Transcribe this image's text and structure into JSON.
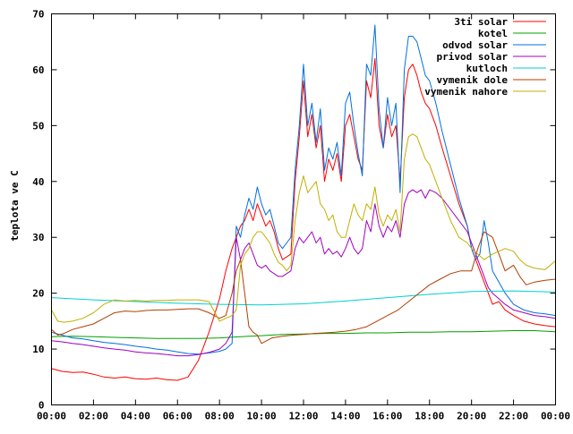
{
  "chart_data": {
    "type": "line",
    "title": "",
    "xlabel": "",
    "ylabel": "teplota ve C",
    "xlim": [
      0,
      24
    ],
    "ylim": [
      0,
      70
    ],
    "grid": false,
    "legend_position": "top-right",
    "x_ticks": [
      {
        "value": 0,
        "label": "00:00"
      },
      {
        "value": 2,
        "label": "02:00"
      },
      {
        "value": 4,
        "label": "04:00"
      },
      {
        "value": 6,
        "label": "06:00"
      },
      {
        "value": 8,
        "label": "08:00"
      },
      {
        "value": 10,
        "label": "10:00"
      },
      {
        "value": 12,
        "label": "12:00"
      },
      {
        "value": 14,
        "label": "14:00"
      },
      {
        "value": 16,
        "label": "16:00"
      },
      {
        "value": 18,
        "label": "18:00"
      },
      {
        "value": 20,
        "label": "20:00"
      },
      {
        "value": 22,
        "label": "22:00"
      },
      {
        "value": 24,
        "label": "00:00"
      }
    ],
    "y_ticks": [
      0,
      10,
      20,
      30,
      40,
      50,
      60,
      70
    ],
    "series": [
      {
        "name": "3ti solar",
        "color": "#ff0000",
        "x": [
          0,
          0.5,
          1,
          1.5,
          2,
          2.5,
          3,
          3.5,
          4,
          4.5,
          5,
          5.5,
          6,
          6.5,
          7,
          7.5,
          8,
          8.3,
          8.6,
          8.8,
          9,
          9.2,
          9.4,
          9.6,
          9.8,
          10,
          10.2,
          10.4,
          10.6,
          10.8,
          11,
          11.2,
          11.4,
          11.6,
          11.8,
          12,
          12.2,
          12.4,
          12.6,
          12.8,
          13,
          13.2,
          13.4,
          13.6,
          13.8,
          14,
          14.2,
          14.4,
          14.6,
          14.8,
          15,
          15.2,
          15.4,
          15.6,
          15.8,
          16,
          16.2,
          16.4,
          16.6,
          16.8,
          17,
          17.2,
          17.4,
          17.6,
          17.8,
          18,
          18.3,
          18.6,
          19,
          19.4,
          19.8,
          20,
          20.2,
          20.4,
          20.6,
          20.8,
          21,
          21.3,
          21.6,
          22,
          22.5,
          23,
          23.5,
          24
        ],
        "y": [
          6.5,
          6,
          5.8,
          5.9,
          5.5,
          5,
          4.8,
          5,
          4.7,
          4.6,
          4.8,
          4.5,
          4.4,
          5,
          8,
          13,
          19,
          24,
          28,
          30,
          32,
          33,
          35,
          33,
          36,
          34,
          32,
          33,
          31,
          28,
          26,
          26.5,
          27,
          40,
          48,
          58,
          48,
          52,
          46,
          50,
          40,
          44,
          42,
          45,
          40,
          50,
          52,
          48,
          44,
          42,
          58,
          55,
          62,
          50,
          46,
          52,
          48,
          50,
          40,
          55,
          60,
          61,
          59,
          56,
          54,
          53,
          50,
          46,
          41,
          36,
          32,
          28,
          26,
          24,
          22,
          20,
          18,
          18.5,
          17,
          16,
          15,
          14.5,
          14.2,
          14
        ]
      },
      {
        "name": "kotel",
        "color": "#00a000",
        "x": [
          0,
          1,
          2,
          3,
          4,
          5,
          6,
          7,
          8,
          9,
          10,
          11,
          12,
          13,
          14,
          15,
          16,
          17,
          18,
          19,
          20,
          21,
          22,
          23,
          24
        ],
        "y": [
          12.2,
          12.3,
          12.2,
          12.1,
          12,
          11.9,
          11.9,
          11.9,
          12,
          12.2,
          12.4,
          12.6,
          12.7,
          12.8,
          12.8,
          12.9,
          12.9,
          13,
          13,
          13.1,
          13.1,
          13.2,
          13.3,
          13.3,
          13.1
        ]
      },
      {
        "name": "odvod solar",
        "color": "#0070e0",
        "x": [
          0,
          0.5,
          1,
          1.5,
          2,
          2.5,
          3,
          3.5,
          4,
          4.5,
          5,
          5.5,
          6,
          6.5,
          7,
          7.5,
          8,
          8.3,
          8.6,
          8.8,
          9,
          9.2,
          9.4,
          9.6,
          9.8,
          10,
          10.2,
          10.4,
          10.6,
          10.8,
          11,
          11.2,
          11.4,
          11.6,
          11.8,
          12,
          12.2,
          12.4,
          12.6,
          12.8,
          13,
          13.2,
          13.4,
          13.6,
          13.8,
          14,
          14.2,
          14.4,
          14.6,
          14.8,
          15,
          15.2,
          15.4,
          15.6,
          15.8,
          16,
          16.2,
          16.4,
          16.6,
          16.8,
          17,
          17.2,
          17.4,
          17.6,
          17.8,
          18,
          18.3,
          18.6,
          19,
          19.4,
          19.8,
          20,
          20.2,
          20.4,
          20.6,
          20.8,
          21,
          21.3,
          21.6,
          22,
          22.5,
          23,
          23.5,
          24
        ],
        "y": [
          13,
          12.5,
          12,
          11.8,
          11.5,
          11.2,
          11,
          10.8,
          10.5,
          10.3,
          10,
          9.8,
          9.5,
          9.2,
          9.1,
          9.3,
          9.6,
          10,
          11,
          32,
          30,
          34,
          37,
          35,
          39,
          36,
          34,
          35,
          32,
          29,
          28,
          29,
          30,
          42,
          50,
          61,
          50,
          54,
          47,
          53,
          42,
          46,
          44,
          47,
          41,
          54,
          56,
          50,
          45,
          41,
          61,
          59,
          68,
          53,
          46,
          55,
          50,
          54,
          38,
          60,
          66,
          66,
          65,
          62,
          59,
          58,
          54,
          49,
          43,
          37,
          32,
          28,
          26,
          27,
          33,
          29,
          24,
          22,
          20,
          18,
          17,
          16.5,
          16.3,
          16
        ]
      },
      {
        "name": "privod solar",
        "color": "#a000c0",
        "x": [
          0,
          0.5,
          1,
          1.5,
          2,
          2.5,
          3,
          3.5,
          4,
          4.5,
          5,
          5.5,
          6,
          6.5,
          7,
          7.5,
          8,
          8.3,
          8.6,
          8.8,
          9,
          9.2,
          9.4,
          9.6,
          9.8,
          10,
          10.2,
          10.4,
          10.6,
          10.8,
          11,
          11.2,
          11.4,
          11.6,
          11.8,
          12,
          12.2,
          12.4,
          12.6,
          12.8,
          13,
          13.2,
          13.4,
          13.6,
          13.8,
          14,
          14.2,
          14.4,
          14.6,
          14.8,
          15,
          15.2,
          15.4,
          15.6,
          15.8,
          16,
          16.2,
          16.4,
          16.6,
          16.8,
          17,
          17.2,
          17.4,
          17.6,
          17.8,
          18,
          18.3,
          18.6,
          19,
          19.4,
          19.8,
          20,
          20.2,
          20.4,
          20.6,
          20.8,
          21,
          21.3,
          21.6,
          22,
          22.5,
          23,
          23.5,
          24
        ],
        "y": [
          11.5,
          11.3,
          11,
          10.8,
          10.5,
          10.2,
          10,
          9.8,
          9.5,
          9.3,
          9.2,
          9,
          8.8,
          8.8,
          9,
          9.4,
          10,
          11,
          13,
          30,
          26,
          28,
          29,
          27,
          25,
          24.5,
          25,
          24,
          23.5,
          23,
          23,
          23.5,
          24,
          28,
          30,
          29,
          30,
          31,
          29,
          30,
          27,
          28,
          27,
          27.5,
          26.5,
          28,
          30,
          28,
          27,
          28,
          33,
          31,
          36,
          32,
          30,
          32,
          31,
          33,
          30,
          36,
          38,
          38.5,
          38,
          38.5,
          37,
          38.5,
          38,
          37,
          35,
          33,
          31,
          29,
          27,
          25,
          23,
          21,
          20,
          19,
          18,
          17,
          16.5,
          16,
          15.8,
          15.5
        ]
      },
      {
        "name": "kutloch",
        "color": "#00d0d0",
        "x": [
          0,
          2,
          4,
          6,
          8,
          10,
          12,
          14,
          16,
          18,
          20,
          22,
          24
        ],
        "y": [
          19.2,
          18.8,
          18.5,
          18.2,
          18,
          17.9,
          18.1,
          18.6,
          19.2,
          19.8,
          20.3,
          20.4,
          20.2
        ]
      },
      {
        "name": "vymenik dole",
        "color": "#b04000",
        "x": [
          0,
          0.3,
          0.6,
          1,
          1.5,
          2,
          2.5,
          3,
          3.5,
          4,
          4.5,
          5,
          5.5,
          6,
          6.5,
          7,
          7.5,
          8,
          8.3,
          8.6,
          8.8,
          9,
          9.2,
          9.4,
          9.6,
          9.8,
          10,
          10.5,
          11,
          11.5,
          12,
          12.5,
          13,
          13.5,
          14,
          14.5,
          15,
          15.5,
          16,
          16.5,
          17,
          17.5,
          18,
          18.5,
          19,
          19.5,
          20,
          20.3,
          20.6,
          21,
          21.3,
          21.6,
          22,
          22.3,
          22.6,
          23,
          23.5,
          24
        ],
        "y": [
          13.5,
          12.5,
          12.8,
          13.5,
          14,
          14.5,
          15.5,
          16.5,
          16.8,
          16.7,
          16.9,
          17,
          17,
          17.1,
          17.2,
          17.2,
          16.5,
          15.5,
          16,
          20,
          24,
          26,
          20,
          14,
          13,
          12.5,
          11,
          12,
          12.3,
          12.5,
          12.6,
          12.8,
          12.9,
          13,
          13.2,
          13.5,
          14,
          15,
          16,
          17,
          18.5,
          20,
          21.5,
          22.5,
          23.5,
          24,
          24,
          28,
          31,
          30,
          27,
          24,
          25,
          23,
          21.5,
          22,
          22.3,
          22.5
        ]
      },
      {
        "name": "vymenik nahore",
        "color": "#c0b000",
        "x": [
          0,
          0.3,
          0.6,
          1,
          1.5,
          2,
          2.5,
          3,
          3.5,
          4,
          4.5,
          5,
          5.5,
          6,
          6.5,
          7,
          7.5,
          8,
          8.3,
          8.6,
          8.8,
          9,
          9.2,
          9.4,
          9.6,
          9.8,
          10,
          10.2,
          10.4,
          10.6,
          10.8,
          11,
          11.2,
          11.4,
          11.6,
          11.8,
          12,
          12.2,
          12.4,
          12.6,
          12.8,
          13,
          13.2,
          13.4,
          13.6,
          13.8,
          14,
          14.2,
          14.4,
          14.6,
          14.8,
          15,
          15.2,
          15.4,
          15.6,
          15.8,
          16,
          16.2,
          16.4,
          16.6,
          16.8,
          17,
          17.2,
          17.4,
          17.6,
          17.8,
          18,
          18.3,
          18.6,
          19,
          19.4,
          19.8,
          20,
          20.3,
          20.6,
          21,
          21.3,
          21.6,
          22,
          22.3,
          22.6,
          23,
          23.5,
          24
        ],
        "y": [
          17,
          15,
          14.8,
          15,
          15.5,
          16.5,
          18,
          18.8,
          18.6,
          18.7,
          18.6,
          18.7,
          18.7,
          18.8,
          18.8,
          18.8,
          18.5,
          15,
          15.5,
          16,
          17,
          25,
          27,
          28,
          30,
          31,
          31,
          30,
          29,
          27,
          25.5,
          25,
          24,
          25,
          33,
          38,
          41,
          38,
          39,
          40,
          36,
          35,
          33,
          34,
          31,
          30,
          30,
          33,
          36,
          34,
          33,
          36,
          35,
          39,
          34,
          32,
          34,
          33,
          35,
          31,
          44,
          48,
          48.5,
          48,
          46,
          44,
          43,
          40,
          37,
          33,
          30,
          29,
          28,
          27,
          26,
          27,
          27.5,
          28,
          27.5,
          26,
          25,
          24.5,
          24.2,
          25.8
        ]
      }
    ]
  }
}
